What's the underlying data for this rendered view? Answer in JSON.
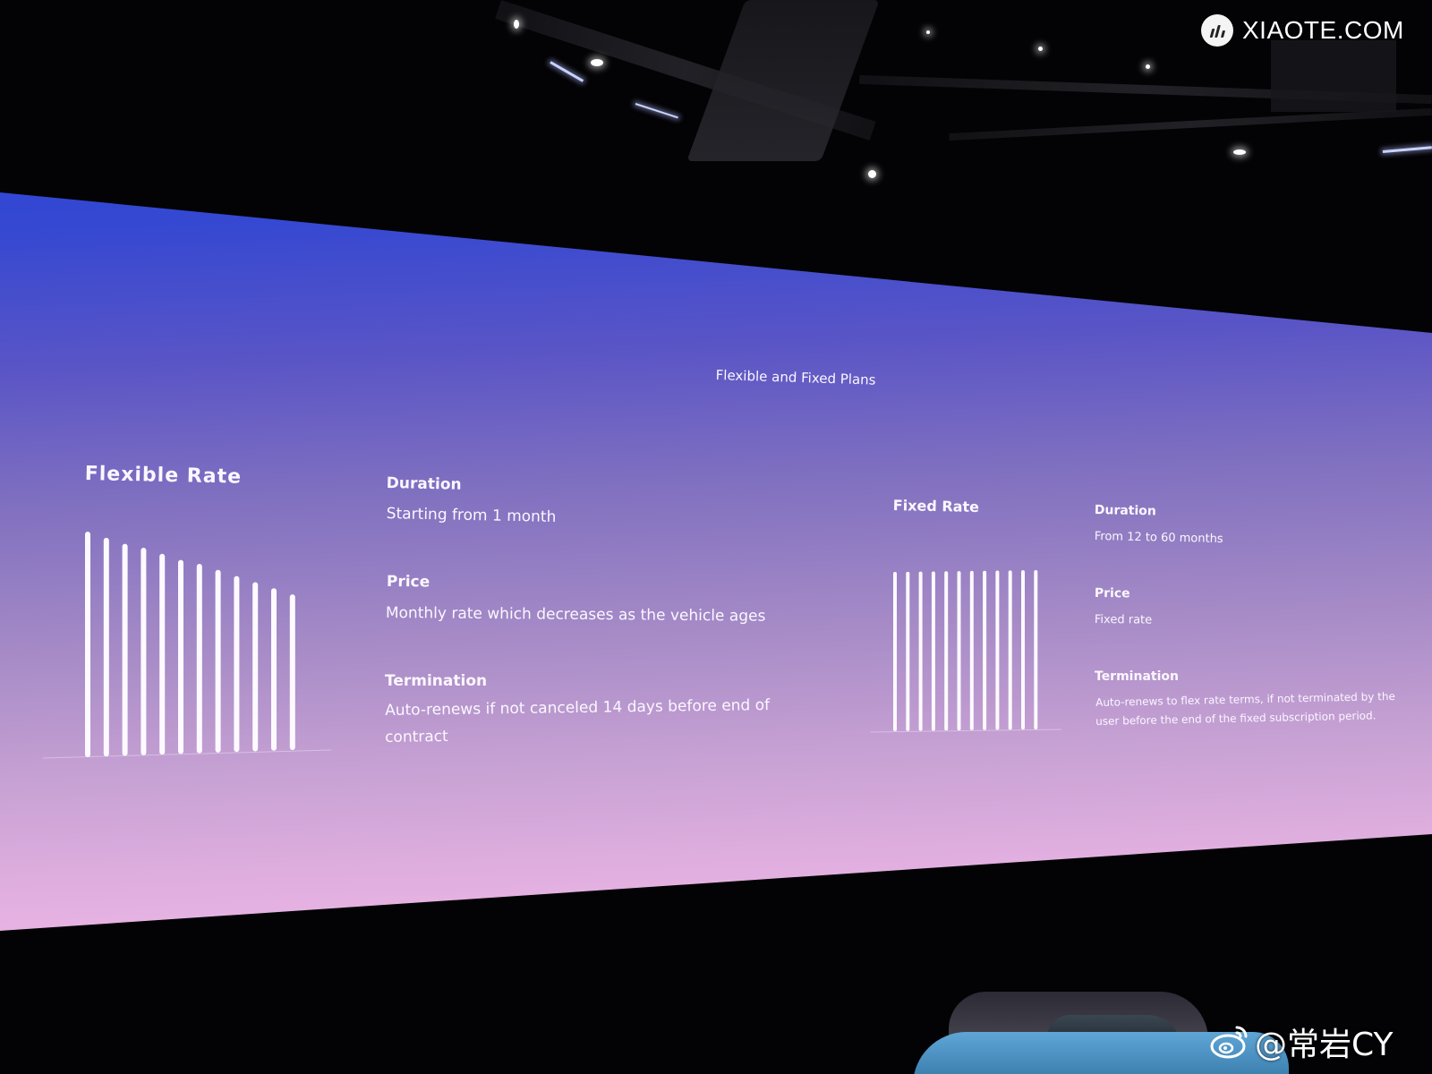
{
  "slide": {
    "title": "Flexible and Fixed Plans",
    "flexible": {
      "heading": "Flexible Rate",
      "duration_label": "Duration",
      "duration_value": "Starting from 1 month",
      "price_label": "Price",
      "price_value": "Monthly rate which decreases as the vehicle ages",
      "termination_label": "Termination",
      "termination_line1": "Auto-renews if not canceled 14 days before end of",
      "termination_line2": "contract",
      "bar_levels": [
        1.0,
        0.97,
        0.94,
        0.92,
        0.89,
        0.86,
        0.84,
        0.81,
        0.78,
        0.75,
        0.72,
        0.69
      ]
    },
    "fixed": {
      "heading": "Fixed Rate",
      "duration_label": "Duration",
      "duration_value": "From 12 to 60 months",
      "price_label": "Price",
      "price_value": "Fixed rate",
      "termination_label": "Termination",
      "termination_line1": "Auto-renews to flex rate terms, if not terminated by the",
      "termination_line2": "user before the end of the fixed subscription period.",
      "bar_levels": [
        1.0,
        1.0,
        1.0,
        1.0,
        1.0,
        1.0,
        1.0,
        1.0,
        1.0,
        1.0,
        1.0,
        1.0
      ]
    }
  },
  "watermarks": {
    "site": "XIAOTE.COM",
    "handle": "@常岩CY"
  },
  "colors": {
    "screen_top": "#2740d8",
    "screen_bottom": "#efb9e9",
    "text": "#fbf7ff"
  }
}
